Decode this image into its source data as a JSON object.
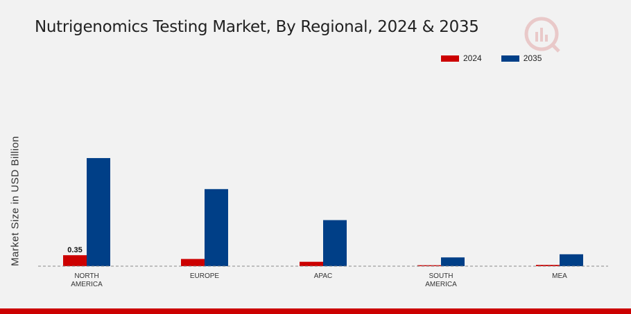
{
  "chart_data": {
    "type": "bar",
    "title": "Nutrigenomics Testing Market, By Regional, 2024 & 2035",
    "ylabel": "Market Size in USD Billion",
    "xlabel": "",
    "categories": [
      "NORTH AMERICA",
      "EUROPE",
      "APAC",
      "SOUTH AMERICA",
      "MEA"
    ],
    "series": [
      {
        "name": "2024",
        "color": "#cc0000",
        "values": [
          0.35,
          0.23,
          0.14,
          0.03,
          0.04
        ]
      },
      {
        "name": "2035",
        "color": "#003f87",
        "values": [
          3.45,
          2.46,
          1.47,
          0.28,
          0.38
        ]
      }
    ],
    "data_labels": [
      {
        "series": 0,
        "index": 0,
        "text": "0.35"
      }
    ],
    "ylim": [
      0,
      5
    ],
    "grid": false,
    "legend_position": "top-right"
  },
  "colors": {
    "accent": "#cc0000",
    "background": "#f2f2f2"
  },
  "logo_icon": "chart-logo-icon"
}
